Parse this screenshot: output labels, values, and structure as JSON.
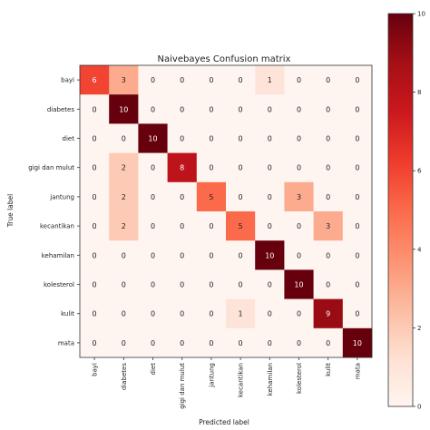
{
  "chart_data": {
    "type": "heatmap",
    "title": "Naivebayes Confusion matrix",
    "xlabel": "Predicted label",
    "ylabel": "True label",
    "labels": [
      "bayi",
      "diabetes",
      "diet",
      "gigi dan mulut",
      "jantung",
      "kecantikan",
      "kehamilan",
      "kolesterol",
      "kulit",
      "mata"
    ],
    "matrix": [
      [
        6,
        3,
        0,
        0,
        0,
        0,
        1,
        0,
        0,
        0
      ],
      [
        0,
        10,
        0,
        0,
        0,
        0,
        0,
        0,
        0,
        0
      ],
      [
        0,
        0,
        10,
        0,
        0,
        0,
        0,
        0,
        0,
        0
      ],
      [
        0,
        2,
        0,
        8,
        0,
        0,
        0,
        0,
        0,
        0
      ],
      [
        0,
        2,
        0,
        0,
        5,
        0,
        0,
        3,
        0,
        0
      ],
      [
        0,
        2,
        0,
        0,
        0,
        5,
        0,
        0,
        3,
        0
      ],
      [
        0,
        0,
        0,
        0,
        0,
        0,
        10,
        0,
        0,
        0
      ],
      [
        0,
        0,
        0,
        0,
        0,
        0,
        0,
        10,
        0,
        0
      ],
      [
        0,
        0,
        0,
        0,
        0,
        1,
        0,
        0,
        9,
        0
      ],
      [
        0,
        0,
        0,
        0,
        0,
        0,
        0,
        0,
        0,
        10
      ]
    ],
    "colormap": "Reds",
    "vmin": 0,
    "vmax": 10,
    "colorbar_ticks": [
      0,
      2,
      4,
      6,
      8,
      10
    ],
    "grid": false
  }
}
